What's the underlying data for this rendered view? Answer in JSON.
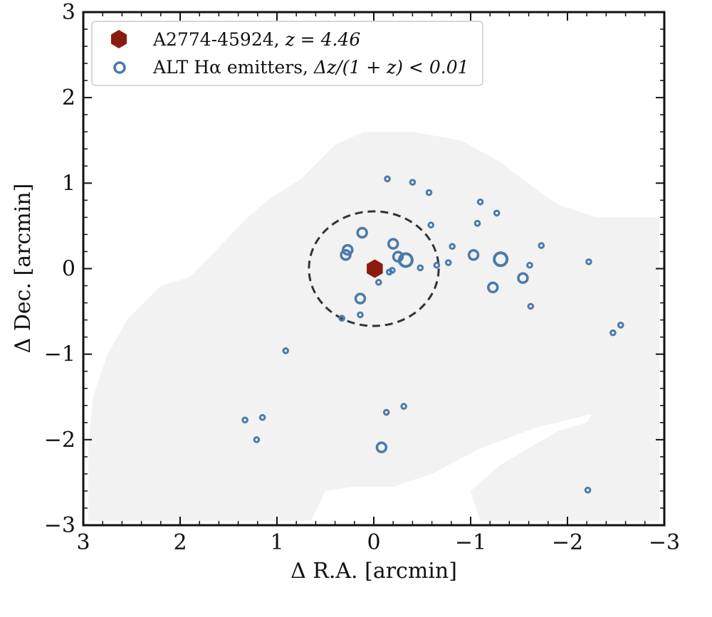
{
  "chart_data": {
    "type": "scatter",
    "xlabel": "Δ R.A. [arcmin]",
    "ylabel": "Δ Dec. [arcmin]",
    "xlim": [
      3,
      -3
    ],
    "ylim": [
      -3,
      3
    ],
    "x_inverted": true,
    "x_ticks": [
      3,
      2,
      1,
      0,
      -1,
      -2,
      -3
    ],
    "y_ticks": [
      -3,
      -2,
      -1,
      0,
      1,
      2,
      3
    ],
    "x_tick_labels": [
      "3",
      "2",
      "1",
      "0",
      "−1",
      "−2",
      "−3"
    ],
    "y_tick_labels": [
      "−3",
      "−2",
      "−1",
      "0",
      "1",
      "2",
      "3"
    ],
    "grid": false,
    "legend_placement": "top-left",
    "colors": {
      "target": "#8b1a10",
      "emitters": "#4a7aab",
      "coverage": "#f2f2f2",
      "circle": "#333333"
    },
    "series": [
      {
        "name": "A2774-45924, z = 4.46",
        "marker": "hexagon",
        "points": [
          {
            "x": -0.01,
            "y": 0.0
          }
        ]
      },
      {
        "name": "ALT Hα emitters, Δz/(1 + z) < 0.01",
        "marker": "open-circle",
        "points": [
          {
            "x": -0.14,
            "y": 1.05,
            "s": 1
          },
          {
            "x": -0.4,
            "y": 1.01,
            "s": 1
          },
          {
            "x": -0.57,
            "y": 0.89,
            "s": 1
          },
          {
            "x": -1.1,
            "y": 0.78,
            "s": 1
          },
          {
            "x": -1.27,
            "y": 0.65,
            "s": 1
          },
          {
            "x": -1.07,
            "y": 0.53,
            "s": 1
          },
          {
            "x": -0.59,
            "y": 0.51,
            "s": 1
          },
          {
            "x": 0.12,
            "y": 0.42,
            "s": 2
          },
          {
            "x": -0.2,
            "y": 0.29,
            "s": 2
          },
          {
            "x": 0.27,
            "y": 0.22,
            "s": 2
          },
          {
            "x": 0.29,
            "y": 0.16,
            "s": 2
          },
          {
            "x": -0.81,
            "y": 0.26,
            "s": 1
          },
          {
            "x": -1.73,
            "y": 0.27,
            "s": 1
          },
          {
            "x": -1.03,
            "y": 0.16,
            "s": 2
          },
          {
            "x": -0.25,
            "y": 0.14,
            "s": 2
          },
          {
            "x": -0.33,
            "y": 0.1,
            "s": 3
          },
          {
            "x": -1.31,
            "y": 0.11,
            "s": 3
          },
          {
            "x": -0.77,
            "y": 0.07,
            "s": 1
          },
          {
            "x": -0.65,
            "y": 0.04,
            "s": 1
          },
          {
            "x": -1.61,
            "y": 0.04,
            "s": 1
          },
          {
            "x": -2.22,
            "y": 0.08,
            "s": 1
          },
          {
            "x": -0.48,
            "y": 0.01,
            "s": 1
          },
          {
            "x": 0.01,
            "y": 0.01,
            "s": 2
          },
          {
            "x": -0.19,
            "y": -0.02,
            "s": 1
          },
          {
            "x": -0.16,
            "y": -0.04,
            "s": 1
          },
          {
            "x": -1.54,
            "y": -0.11,
            "s": 2
          },
          {
            "x": -0.05,
            "y": -0.16,
            "s": 1
          },
          {
            "x": -1.23,
            "y": -0.22,
            "s": 2
          },
          {
            "x": 0.14,
            "y": -0.35,
            "s": 2
          },
          {
            "x": -1.62,
            "y": -0.44,
            "s": 1
          },
          {
            "x": 0.14,
            "y": -0.54,
            "s": 1
          },
          {
            "x": 0.33,
            "y": -0.58,
            "s": 1
          },
          {
            "x": -2.55,
            "y": -0.66,
            "s": 1
          },
          {
            "x": -2.47,
            "y": -0.75,
            "s": 1
          },
          {
            "x": 0.91,
            "y": -0.96,
            "s": 1
          },
          {
            "x": -0.31,
            "y": -1.61,
            "s": 1
          },
          {
            "x": -0.13,
            "y": -1.68,
            "s": 1
          },
          {
            "x": 1.15,
            "y": -1.74,
            "s": 1
          },
          {
            "x": 1.33,
            "y": -1.77,
            "s": 1
          },
          {
            "x": 1.21,
            "y": -2.0,
            "s": 1
          },
          {
            "x": -0.08,
            "y": -2.09,
            "s": 2
          },
          {
            "x": -2.21,
            "y": -2.59,
            "s": 1
          }
        ]
      }
    ],
    "annotations": [
      {
        "type": "dashed-circle",
        "center": [
          0,
          0
        ],
        "radius": 0.67
      }
    ]
  },
  "legend": {
    "target_name": "A2774-45924,",
    "target_redshift": "z = 4.46",
    "emitters_name": "ALT Hα emitters,",
    "emitters_cut": "Δz/(1 + z) < 0.01"
  }
}
